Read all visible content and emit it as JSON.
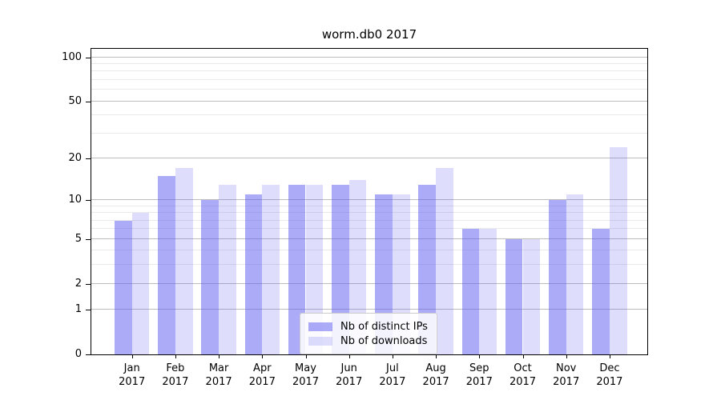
{
  "chart_data": {
    "type": "bar",
    "title": "worm.db0 2017",
    "categories": [
      "Jan",
      "Feb",
      "Mar",
      "Apr",
      "May",
      "Jun",
      "Jul",
      "Aug",
      "Sep",
      "Oct",
      "Nov",
      "Dec"
    ],
    "category_year": "2017",
    "series": [
      {
        "name": "Nb of distinct IPs",
        "values": [
          7,
          15,
          10,
          11,
          13,
          13,
          11,
          13,
          6,
          5,
          10,
          6
        ],
        "color": "rgba(88,88,240,0.50)"
      },
      {
        "name": "Nb of downloads",
        "values": [
          8,
          17,
          13,
          13,
          13,
          14,
          11,
          17,
          6,
          5,
          11,
          24
        ],
        "color": "rgba(88,88,240,0.20)"
      }
    ],
    "yticks": [
      0,
      1,
      2,
      5,
      10,
      20,
      50,
      100
    ],
    "minor_yticks": [
      3,
      4,
      6,
      7,
      8,
      9,
      30,
      40,
      60,
      70,
      80,
      90
    ],
    "scale": "log1p",
    "ylim": [
      0,
      114
    ],
    "grid": "both",
    "legend_position": "lower center",
    "colors": {
      "bar_distinct_ips": "#a9a9f6",
      "bar_downloads": "#d9d9fa",
      "major_grid": "#bdbdbd",
      "minor_grid": "#e9e9e9",
      "axis": "#000000"
    }
  }
}
